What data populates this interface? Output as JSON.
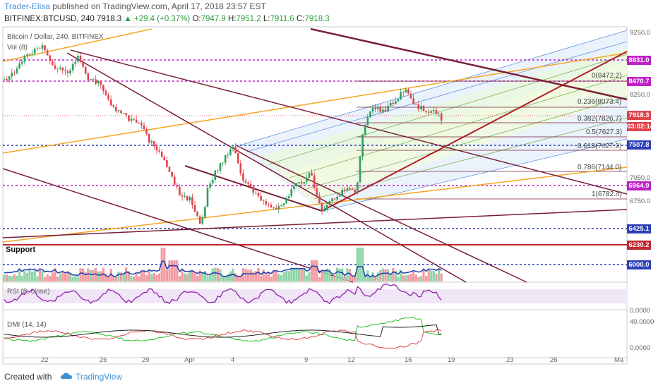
{
  "header": {
    "author": "Trader-Elisa",
    "published": "published on TradingView.com, April 17, 2018 23:57 EST",
    "symbol": "BITFINEX:BTCUSD, 240",
    "last": "7918.3",
    "change": "▲ +29.4 (+0.37%)",
    "o_label": "O:",
    "o": "7947.9",
    "h_label": "H:",
    "h": "7951.2",
    "l_label": "L:",
    "l": "7911.6",
    "c_label": "C:",
    "c": "7918.3"
  },
  "chart": {
    "legend_title": "Bitcoin / Dollar, 240, BITFINEX",
    "vol_label": "Vol (8)",
    "support_label": "Support",
    "rsi_label": "RSI (8, close)",
    "dmi_label": "DMI (14, 14)",
    "price_labels": [
      {
        "text": "8831.0",
        "color": "#c020c8"
      },
      {
        "text": "8470.7",
        "color": "#c020c8"
      },
      {
        "text": "7918.3",
        "color": "#e0434b"
      },
      {
        "text": "03:02:14",
        "color": "#e0434b"
      },
      {
        "text": "7507.8",
        "color": "#2a3fb8"
      },
      {
        "text": "6964.9",
        "color": "#c020c8"
      },
      {
        "text": "6425.1",
        "color": "#2a3fb8"
      },
      {
        "text": "6230.2",
        "color": "#c0262e"
      },
      {
        "text": "6000.0",
        "color": "#2a3fb8"
      }
    ],
    "price_ticks": [
      "9250.0",
      "8250.0",
      "7050.0",
      "6750.0"
    ],
    "fib_levels": [
      "0(8472.2)",
      "0.236(8073.4)",
      "0.382(7826.7)",
      "0.5(7627.3)",
      "0.618(7427.9)",
      "0.786(7144.0)",
      "1(6782.4)"
    ],
    "rsi_ticks": [
      "0.0000"
    ],
    "dmi_ticks": [
      "40.0000",
      "0.0000"
    ],
    "x_ticks": [
      "22",
      "26",
      "29",
      "Apr",
      "4",
      "9",
      "12",
      "16",
      "19",
      "23",
      "26",
      "Ma"
    ],
    "colors": {
      "resistance": "#c020c8",
      "support_blue": "#2a3fb8",
      "support_red": "#c0262e",
      "trend_dark": "#7a1f36",
      "trend_orange": "#f5a623",
      "candle_up": "#2e9e5e",
      "candle_down": "#e0434b"
    }
  },
  "footer": {
    "created_with": "Created with",
    "brand": "TradingView"
  }
}
